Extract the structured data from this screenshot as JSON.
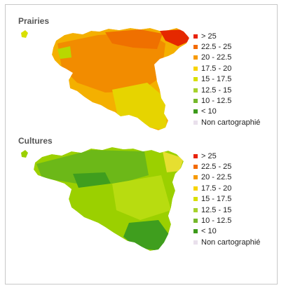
{
  "maps": [
    {
      "title": "Prairies",
      "base_color": "#f4b000",
      "blobs": [
        {
          "color": "#f28c00",
          "cls": "20 - 22.5"
        },
        {
          "color": "#ef7000",
          "cls": "22.5 - 25"
        },
        {
          "color": "#e6d400",
          "cls": "17.5 - 20"
        },
        {
          "color": "#b9d800",
          "cls": "15 - 17.5"
        },
        {
          "color": "#e52800",
          "cls": "> 25"
        }
      ]
    },
    {
      "title": "Cultures",
      "base_color": "#9bd000",
      "blobs": [
        {
          "color": "#6cb818",
          "cls": "12.5 - 15"
        },
        {
          "color": "#3f9e1e",
          "cls": "10 - 12.5"
        },
        {
          "color": "#b8dc10",
          "cls": "15 - 17.5"
        },
        {
          "color": "#e6df30",
          "cls": "17.5 - 20"
        }
      ]
    }
  ],
  "legend": [
    {
      "label": "> 25",
      "color": "#e8220a"
    },
    {
      "label": "22.5 - 25",
      "color": "#f36a00"
    },
    {
      "label": "20 - 22.5",
      "color": "#f79a00"
    },
    {
      "label": "17.5 - 20",
      "color": "#f7d400"
    },
    {
      "label": "15 - 17.5",
      "color": "#d8df00"
    },
    {
      "label": "12.5 - 15",
      "color": "#a6d22c"
    },
    {
      "label": "10 - 12.5",
      "color": "#74b82a"
    },
    {
      "label": "< 10",
      "color": "#3c9a1a"
    },
    {
      "label": "Non cartographié",
      "color": "#e9e0ec"
    }
  ]
}
